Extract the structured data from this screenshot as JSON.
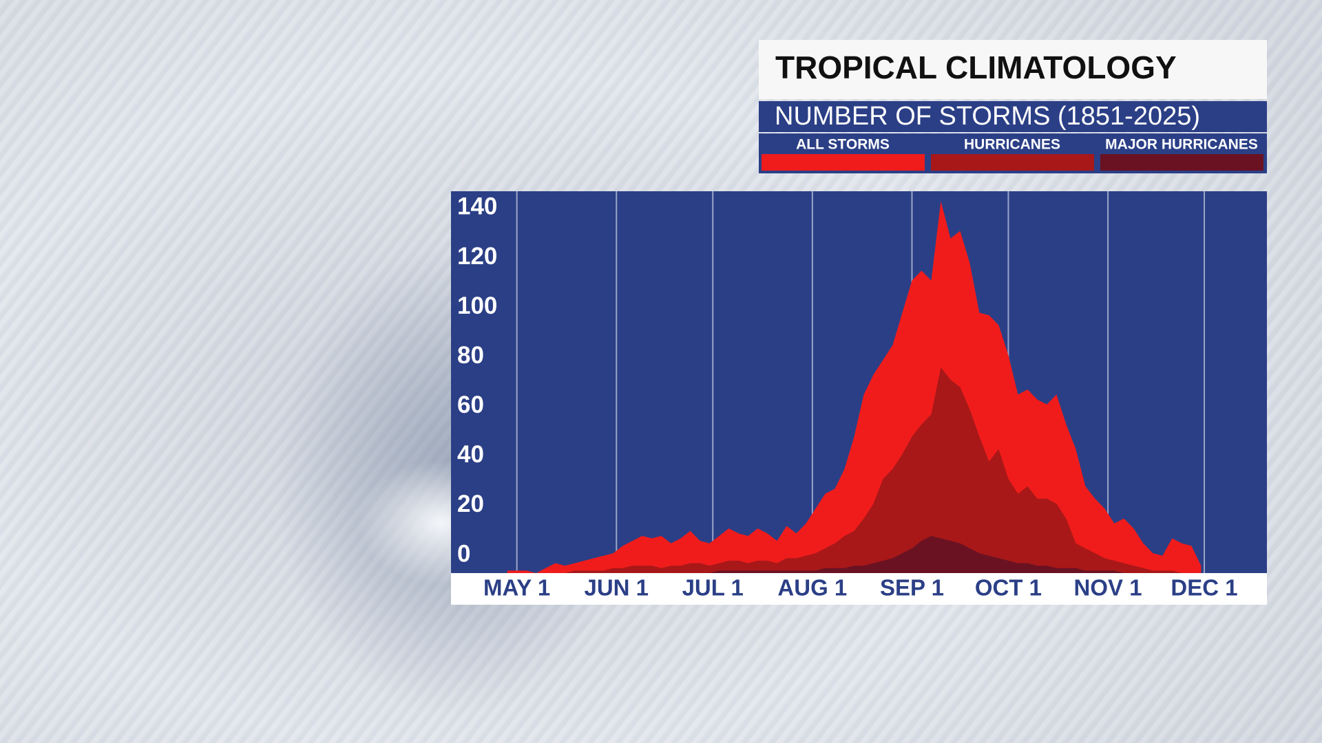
{
  "chart_data": {
    "type": "area",
    "title": "TROPICAL CLIMATOLOGY",
    "subtitle": "NUMBER OF STORMS (1851-2025)",
    "x": [
      -3,
      0,
      3,
      6,
      9,
      12,
      15,
      18,
      21,
      24,
      27,
      30,
      33,
      36,
      39,
      42,
      45,
      48,
      51,
      54,
      57,
      60,
      63,
      66,
      69,
      72,
      75,
      78,
      81,
      84,
      87,
      90,
      93,
      96,
      99,
      102,
      105,
      108,
      111,
      114,
      117,
      120,
      123,
      126,
      129,
      132,
      135,
      138,
      141,
      144,
      147,
      150,
      153,
      156,
      159,
      162,
      165,
      168,
      171,
      174,
      177,
      180,
      183,
      186,
      189,
      192,
      195,
      198,
      201,
      204,
      207,
      210,
      213
    ],
    "series": [
      {
        "name": "ALL STORMS",
        "color": "#f01c1c",
        "values": [
          1,
          1,
          1,
          0,
          2,
          4,
          3,
          4,
          5,
          6,
          7,
          8,
          11,
          13,
          15,
          14,
          15,
          12,
          14,
          17,
          13,
          12,
          15,
          18,
          16,
          15,
          18,
          16,
          13,
          19,
          16,
          20,
          26,
          32,
          34,
          42,
          55,
          72,
          80,
          86,
          92,
          105,
          118,
          122,
          118,
          150,
          135,
          138,
          125,
          105,
          104,
          100,
          88,
          72,
          74,
          70,
          68,
          72,
          60,
          50,
          35,
          30,
          26,
          20,
          22,
          18,
          12,
          8,
          7,
          14,
          12,
          11,
          3
        ]
      },
      {
        "name": "HURRICANES",
        "color": "#a81818",
        "values": [
          0,
          0,
          0,
          0,
          0,
          0,
          0,
          1,
          1,
          1,
          1,
          2,
          2,
          3,
          3,
          3,
          2,
          3,
          3,
          4,
          4,
          3,
          4,
          5,
          5,
          4,
          5,
          5,
          4,
          6,
          6,
          7,
          8,
          10,
          12,
          15,
          17,
          22,
          28,
          38,
          42,
          48,
          55,
          60,
          64,
          83,
          78,
          75,
          66,
          55,
          45,
          50,
          38,
          32,
          35,
          30,
          30,
          28,
          22,
          12,
          10,
          8,
          6,
          5,
          4,
          3,
          2,
          1,
          1,
          1,
          0,
          0,
          0
        ]
      },
      {
        "name": "MAJOR HURRICANES",
        "color": "#6a1222",
        "values": [
          0,
          0,
          0,
          0,
          0,
          0,
          0,
          0,
          0,
          0,
          0,
          0,
          0,
          0,
          0,
          0,
          0,
          0,
          0,
          0,
          0,
          0,
          1,
          1,
          1,
          1,
          1,
          1,
          1,
          1,
          1,
          1,
          1,
          2,
          2,
          2,
          3,
          3,
          4,
          5,
          6,
          8,
          10,
          13,
          15,
          14,
          13,
          12,
          10,
          8,
          7,
          6,
          5,
          4,
          4,
          3,
          3,
          2,
          2,
          2,
          1,
          1,
          1,
          1,
          0,
          0,
          0,
          0,
          0,
          0,
          0,
          0,
          0
        ]
      }
    ],
    "xlim": [
      -20.5,
      233.5
    ],
    "xticks": [
      {
        "value": 0,
        "label": "MAY 1"
      },
      {
        "value": 31,
        "label": "JUN 1"
      },
      {
        "value": 61,
        "label": "JUL 1"
      },
      {
        "value": 92,
        "label": "AUG 1"
      },
      {
        "value": 123,
        "label": "SEP 1"
      },
      {
        "value": 153,
        "label": "OCT 1"
      },
      {
        "value": 184,
        "label": "NOV 1"
      },
      {
        "value": 214,
        "label": "DEC 1"
      }
    ],
    "ylim": [
      0,
      154
    ],
    "yticks": [
      0,
      20,
      40,
      60,
      80,
      100,
      120,
      140
    ],
    "grid": true
  }
}
